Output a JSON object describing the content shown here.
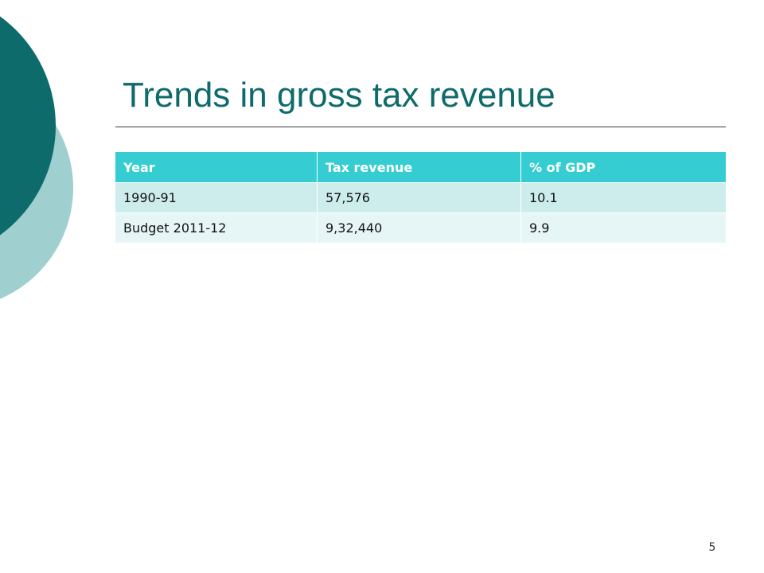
{
  "slide": {
    "title": "Trends in gross tax revenue",
    "page_number": "5"
  },
  "table": {
    "headers": [
      "Year",
      "Tax revenue",
      "% of GDP"
    ],
    "rows": [
      [
        "1990-91",
        "57,576",
        "10.1"
      ],
      [
        "Budget 2011-12",
        "9,32,440",
        "9.9"
      ]
    ]
  },
  "colors": {
    "title": "#0e6b6b",
    "dark_teal_circle": "#0e6b6b",
    "light_teal_circle": "#9fcfcf",
    "header_fill": "#35cdd1",
    "row_odd_fill": "#cdecec",
    "row_even_fill": "#e6f6f6"
  }
}
